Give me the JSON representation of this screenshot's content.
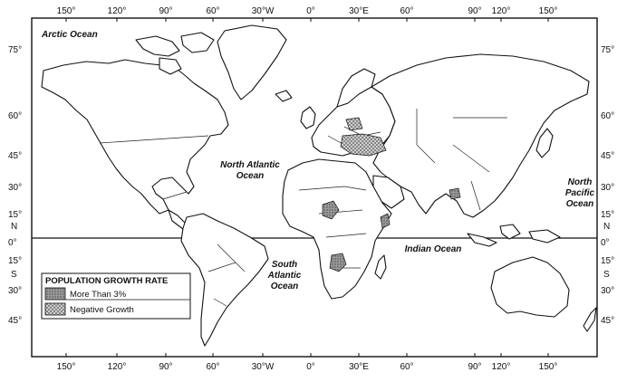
{
  "map": {
    "longitude_labels_top": [
      "150°",
      "120°",
      "90°",
      "60°",
      "30°W",
      "0°",
      "30°E",
      "60°",
      "90°",
      "120°",
      "150°"
    ],
    "longitude_labels_bottom": [
      "150°",
      "120°",
      "90°",
      "60°",
      "30°W",
      "0°",
      "30°E",
      "60°",
      "90°",
      "120°",
      "150°"
    ],
    "latitude_labels_left": [
      "75°",
      "60°",
      "45°",
      "30°",
      "15°",
      "N",
      "0°",
      "15°",
      "S",
      "30°",
      "45°"
    ],
    "latitude_labels_right": [
      "75°",
      "60°",
      "45°",
      "30°",
      "15°",
      "N",
      "0°",
      "15°",
      "S",
      "30°",
      "45°"
    ],
    "oceans": {
      "arctic": "Arctic Ocean",
      "north_atlantic_1": "North Atlantic",
      "north_atlantic_2": "Ocean",
      "south_atlantic_1": "South",
      "south_atlantic_2": "Atlantic",
      "south_atlantic_3": "Ocean",
      "indian": "Indian Ocean",
      "north_pacific_1": "North",
      "north_pacific_2": "Pacific",
      "north_pacific_3": "Ocean"
    },
    "legend": {
      "title": "POPULATION GROWTH RATE",
      "items": [
        {
          "label": "More Than 3%",
          "pattern": "dark-stipple"
        },
        {
          "label": "Negative Growth",
          "pattern": "light-crosshatch"
        }
      ]
    },
    "colors": {
      "ink": "#111111",
      "paper": "#ffffff",
      "more_than_3": "#8a8a8a",
      "negative_growth": "#bdbdbd"
    }
  }
}
